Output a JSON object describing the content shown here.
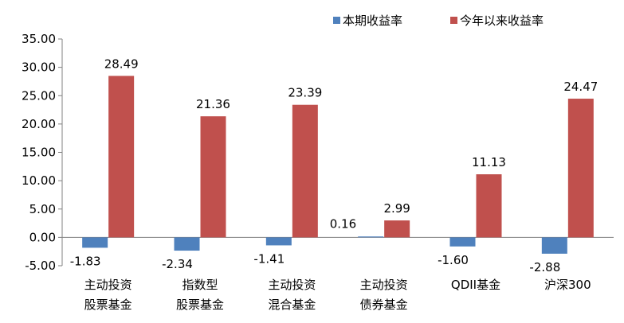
{
  "chart_data": {
    "type": "bar",
    "categories": [
      [
        "主动投资",
        "股票基金"
      ],
      [
        "指数型",
        "股票基金"
      ],
      [
        "主动投资",
        "混合基金"
      ],
      [
        "主动投资",
        "债券基金"
      ],
      [
        "QDII基金"
      ],
      [
        "沪深300"
      ]
    ],
    "series": [
      {
        "name": "本期收益率",
        "color": "#4f81bd",
        "values": [
          -1.83,
          -2.34,
          -1.41,
          0.16,
          -1.6,
          -2.88
        ],
        "labels": [
          "-1.83",
          "-2.34",
          "-1.41",
          "0.16",
          "-1.60",
          "-2.88"
        ]
      },
      {
        "name": "今年以来收益率",
        "color": "#c0504d",
        "values": [
          28.49,
          21.36,
          23.39,
          2.99,
          11.13,
          24.47
        ],
        "labels": [
          "28.49",
          "21.36",
          "23.39",
          "2.99",
          "11.13",
          "24.47"
        ]
      }
    ],
    "ylim": [
      -5,
      35
    ],
    "yticks": [
      "-5.00",
      "0.00",
      "5.00",
      "10.00",
      "15.00",
      "20.00",
      "25.00",
      "30.00",
      "35.00"
    ],
    "grid": false,
    "legend": "top-right"
  }
}
